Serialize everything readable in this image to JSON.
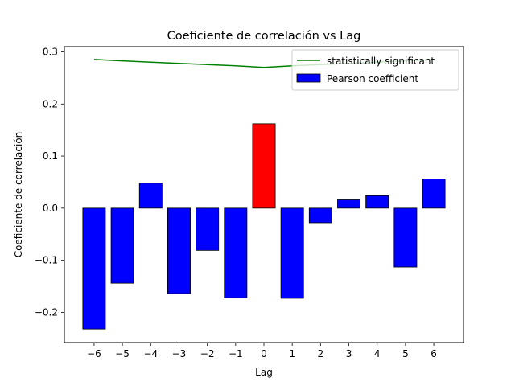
{
  "chart_data": {
    "type": "bar",
    "title": "Coeficiente de correlación vs Lag",
    "xlabel": "Lag",
    "ylabel": "Coeficiente de correlación",
    "categories": [
      -6,
      -5,
      -4,
      -3,
      -2,
      -1,
      0,
      1,
      2,
      3,
      4,
      5,
      6
    ],
    "xticks": [
      "−6",
      "−5",
      "−4",
      "−3",
      "−2",
      "−1",
      "0",
      "1",
      "2",
      "3",
      "4",
      "5",
      "6"
    ],
    "yticks": [
      -0.2,
      -0.1,
      0.0,
      0.1,
      0.2,
      0.3
    ],
    "ytick_labels": [
      "−0.2",
      "−0.1",
      "0.0",
      "0.1",
      "0.2",
      "0.3"
    ],
    "xlim": [
      -7.05,
      7.05
    ],
    "ylim": [
      -0.258,
      0.31
    ],
    "grid": false,
    "legend_position": "top-right",
    "series": [
      {
        "name": "Pearson coefficient",
        "kind": "bar",
        "values": [
          -0.232,
          -0.144,
          0.048,
          -0.164,
          -0.081,
          -0.172,
          0.162,
          -0.173,
          -0.028,
          0.016,
          0.024,
          -0.113,
          0.056
        ],
        "colors": [
          "#0000ff",
          "#0000ff",
          "#0000ff",
          "#0000ff",
          "#0000ff",
          "#0000ff",
          "#ff0000",
          "#0000ff",
          "#0000ff",
          "#0000ff",
          "#0000ff",
          "#0000ff",
          "#0000ff"
        ]
      },
      {
        "name": "statistically significant",
        "kind": "line",
        "color": "#008000",
        "x": [
          -6,
          -5,
          -4,
          -3,
          -2,
          -1,
          0,
          1,
          2,
          3,
          4,
          5,
          6
        ],
        "values": [
          0.2855,
          0.2828,
          0.2803,
          0.278,
          0.2757,
          0.2733,
          0.2702,
          0.2733,
          0.2757,
          0.278,
          0.2803,
          0.2828,
          0.2855
        ]
      }
    ]
  }
}
